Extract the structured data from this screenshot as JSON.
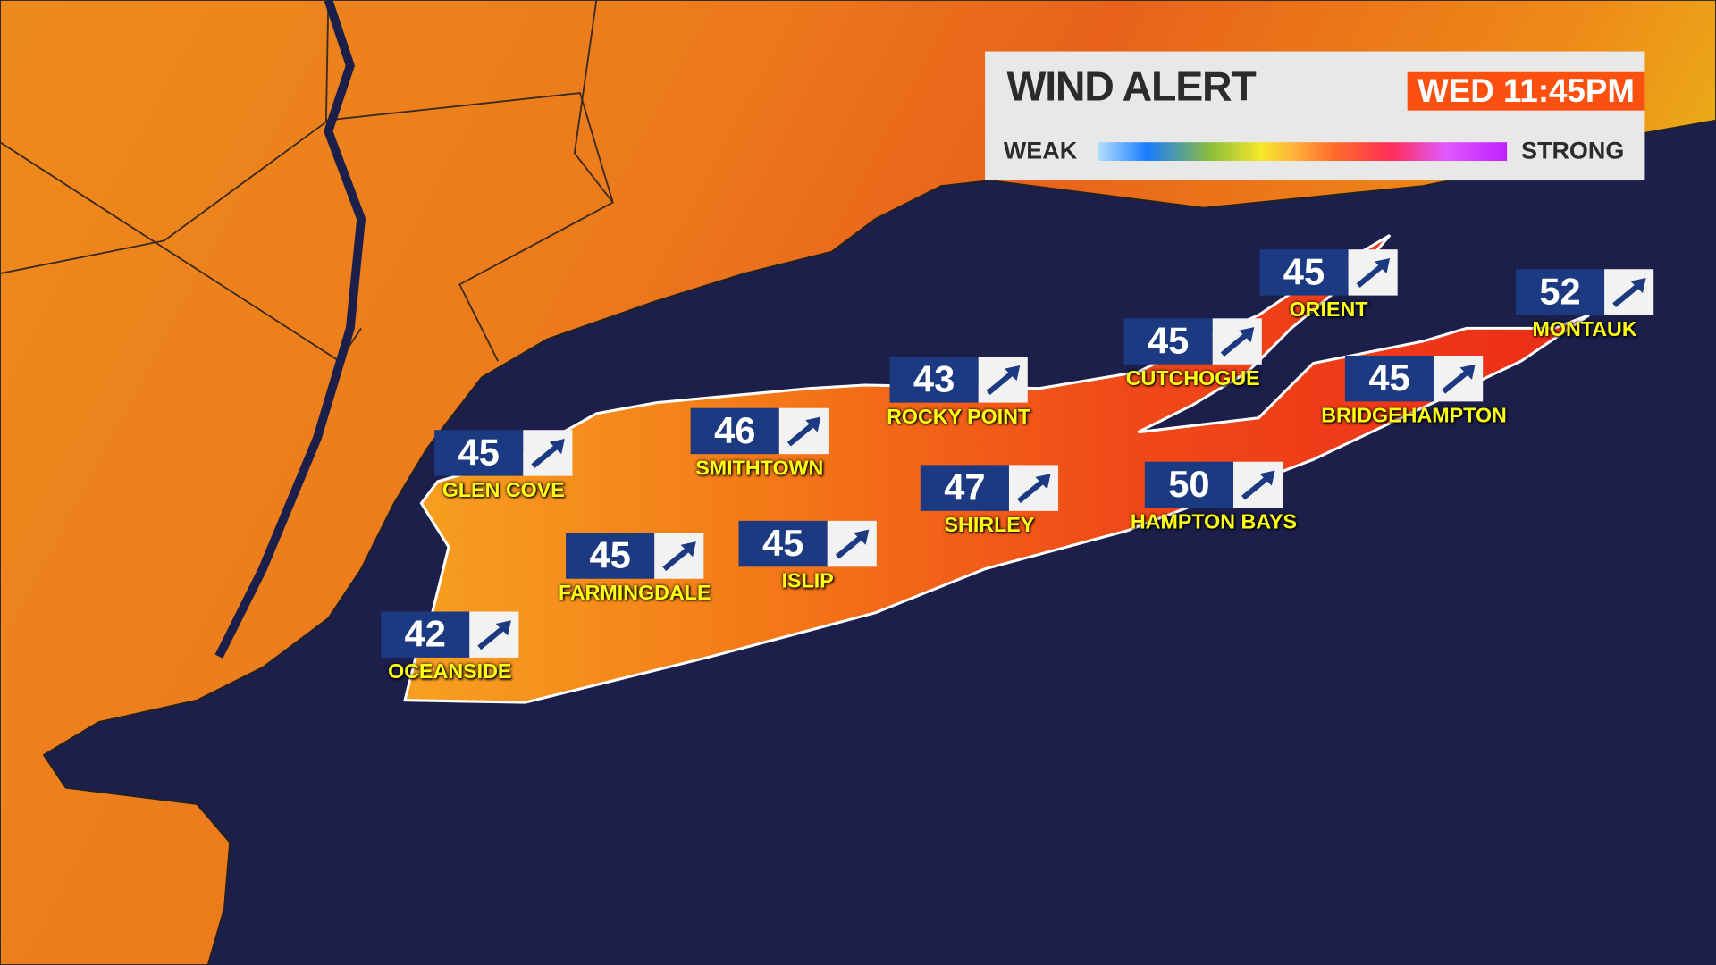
{
  "header": {
    "title": "WIND ALERT",
    "time": "WED  11:45PM",
    "scale_low": "WEAK",
    "scale_high": "STRONG"
  },
  "colors": {
    "ocean": "#1b1f4a",
    "land_low": "#f0a020",
    "land_high": "#f03a1a",
    "badge": "#1b3a82",
    "time_bg": "#fb500f",
    "label_text": "#ffff14"
  },
  "locations": [
    {
      "name": "GLEN COVE",
      "speed": "45",
      "icon": "arrow-northeast-icon"
    },
    {
      "name": "SMITHTOWN",
      "speed": "46",
      "icon": "arrow-northeast-icon"
    },
    {
      "name": "ROCKY POINT",
      "speed": "43",
      "icon": "arrow-northeast-icon"
    },
    {
      "name": "CUTCHOGUE",
      "speed": "45",
      "icon": "arrow-northeast-icon"
    },
    {
      "name": "ORIENT",
      "speed": "45",
      "icon": "arrow-northeast-icon"
    },
    {
      "name": "MONTAUK",
      "speed": "52",
      "icon": "arrow-northeast-icon"
    },
    {
      "name": "BRIDGEHAMPTON",
      "speed": "45",
      "icon": "arrow-northeast-icon"
    },
    {
      "name": "HAMPTON BAYS",
      "speed": "50",
      "icon": "arrow-northeast-icon"
    },
    {
      "name": "SHIRLEY",
      "speed": "47",
      "icon": "arrow-northeast-icon"
    },
    {
      "name": "ISLIP",
      "speed": "45",
      "icon": "arrow-northeast-icon"
    },
    {
      "name": "FARMINGDALE",
      "speed": "45",
      "icon": "arrow-northeast-icon"
    },
    {
      "name": "OCEANSIDE",
      "speed": "42",
      "icon": "arrow-northeast-icon"
    }
  ]
}
